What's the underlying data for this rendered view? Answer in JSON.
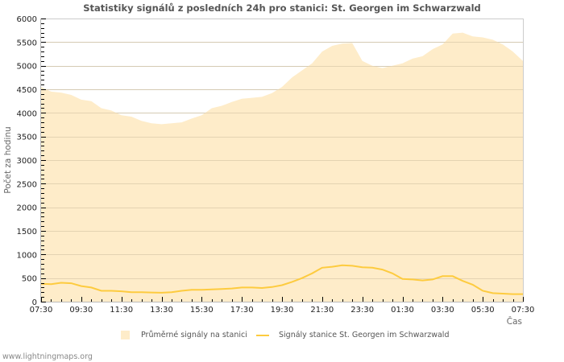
{
  "header": {
    "title": "Statistiky signálů z posledních 24h pro stanici: St. Georgen im Schwarzwald"
  },
  "axes": {
    "y_label": "Počet za hodinu",
    "x_label": "Čas",
    "y_ticks": [
      "0",
      "500",
      "1000",
      "1500",
      "2000",
      "2500",
      "3000",
      "3500",
      "4000",
      "4500",
      "5000",
      "5500",
      "6000"
    ],
    "x_ticks": [
      "07:30",
      "09:30",
      "11:30",
      "13:30",
      "15:30",
      "17:30",
      "19:30",
      "21:30",
      "23:30",
      "01:30",
      "03:30",
      "05:30",
      "07:30"
    ]
  },
  "legend": {
    "area_label": "Průměrné signály na stanici",
    "line_label": "Signály stanice St. Georgen im Schwarzwald"
  },
  "footer": {
    "source": "www.lightningmaps.org"
  },
  "colors": {
    "area_fill": "#feecc9",
    "line": "#fdcb3f",
    "grid": "#cccccc",
    "grid_over_area": "#d9c9a8",
    "axis": "#bbbbbb"
  },
  "chart_data": {
    "type": "area",
    "title": "Statistiky signálů z posledních 24h pro stanici: St. Georgen im Schwarzwald",
    "xlabel": "Čas",
    "ylabel": "Počet za hodinu",
    "ylim": [
      0,
      6000
    ],
    "grid": true,
    "legend_position": "bottom",
    "x": [
      "07:30",
      "08:00",
      "08:30",
      "09:00",
      "09:30",
      "10:00",
      "10:30",
      "11:00",
      "11:30",
      "12:00",
      "12:30",
      "13:00",
      "13:30",
      "14:00",
      "14:30",
      "15:00",
      "15:30",
      "16:00",
      "16:30",
      "17:00",
      "17:30",
      "18:00",
      "18:30",
      "19:00",
      "19:30",
      "20:00",
      "20:30",
      "21:00",
      "21:30",
      "22:00",
      "22:30",
      "23:00",
      "23:30",
      "00:00",
      "00:30",
      "01:00",
      "01:30",
      "02:00",
      "02:30",
      "03:00",
      "03:30",
      "04:00",
      "04:30",
      "05:00",
      "05:30",
      "06:00",
      "06:30",
      "07:00",
      "07:30"
    ],
    "series": [
      {
        "name": "Průměrné signály na stanici",
        "type": "area",
        "values": [
          4550,
          4450,
          4430,
          4380,
          4280,
          4250,
          4100,
          4050,
          3950,
          3920,
          3830,
          3780,
          3760,
          3780,
          3800,
          3880,
          3950,
          4100,
          4150,
          4230,
          4300,
          4320,
          4340,
          4420,
          4550,
          4750,
          4900,
          5050,
          5300,
          5420,
          5470,
          5480,
          5100,
          5000,
          4950,
          5000,
          5050,
          5150,
          5200,
          5350,
          5450,
          5680,
          5700,
          5620,
          5600,
          5550,
          5450,
          5300,
          5100
        ]
      },
      {
        "name": "Signály stanice St. Georgen im Schwarzwald",
        "type": "line",
        "values": [
          380,
          370,
          400,
          390,
          330,
          300,
          230,
          230,
          220,
          200,
          200,
          195,
          190,
          200,
          230,
          250,
          250,
          260,
          270,
          280,
          300,
          300,
          290,
          310,
          350,
          420,
          500,
          600,
          720,
          740,
          770,
          760,
          730,
          720,
          680,
          600,
          480,
          470,
          450,
          470,
          540,
          540,
          440,
          360,
          230,
          180,
          170,
          160,
          160
        ]
      }
    ]
  }
}
